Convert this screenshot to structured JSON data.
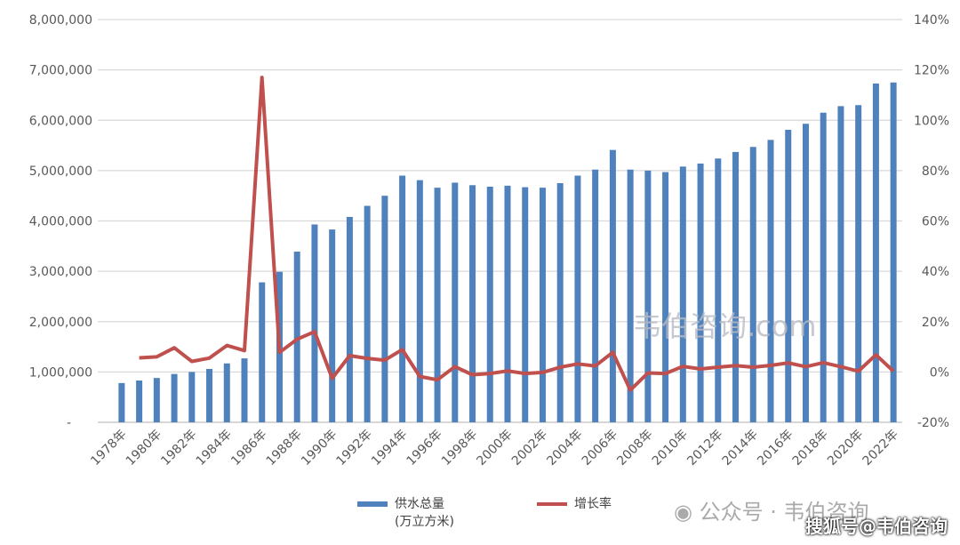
{
  "chart_data": {
    "type": "bar+line",
    "categories": [
      "1978年",
      "1979年",
      "1980年",
      "1981年",
      "1982年",
      "1983年",
      "1984年",
      "1985年",
      "1986年",
      "1987年",
      "1988年",
      "1989年",
      "1990年",
      "1991年",
      "1992年",
      "1993年",
      "1994年",
      "1995年",
      "1996年",
      "1997年",
      "1998年",
      "1999年",
      "2000年",
      "2001年",
      "2002年",
      "2003年",
      "2004年",
      "2005年",
      "2006年",
      "2007年",
      "2008年",
      "2009年",
      "2010年",
      "2011年",
      "2012年",
      "2013年",
      "2014年",
      "2015年",
      "2016年",
      "2017年",
      "2018年",
      "2019年",
      "2020年",
      "2021年",
      "2022年"
    ],
    "series": [
      {
        "name": "供水总量",
        "name_line2": "(万立方米)",
        "type": "bar",
        "axis": "left",
        "color": "#4f81bd",
        "values": [
          780000,
          830000,
          880000,
          960000,
          1000000,
          1060000,
          1170000,
          1270000,
          2780000,
          2990000,
          3390000,
          3930000,
          3830000,
          4080000,
          4300000,
          4500000,
          4900000,
          4810000,
          4660000,
          4760000,
          4710000,
          4680000,
          4700000,
          4670000,
          4660000,
          4750000,
          4900000,
          5020000,
          5410000,
          5020000,
          5000000,
          4970000,
          5080000,
          5140000,
          5240000,
          5370000,
          5470000,
          5610000,
          5810000,
          5930000,
          6150000,
          6280000,
          6300000,
          6730000,
          6750000
        ]
      },
      {
        "name": "增长率",
        "type": "line",
        "axis": "right",
        "color": "#c0504d",
        "values": [
          null,
          5.6,
          6.0,
          9.6,
          4.2,
          5.5,
          10.5,
          8.5,
          117,
          7.8,
          13,
          16,
          -2.5,
          6.5,
          5.4,
          4.7,
          8.9,
          -1.8,
          -3.1,
          2.1,
          -1.1,
          -0.6,
          0.4,
          -0.6,
          -0.2,
          1.9,
          3.2,
          2.4,
          7.8,
          -7.2,
          -0.4,
          -0.6,
          2.2,
          1.2,
          1.9,
          2.5,
          1.9,
          2.6,
          3.6,
          2.1,
          3.7,
          2.1,
          0.3,
          6.8,
          0.3
        ]
      }
    ],
    "y_left": {
      "ylim": [
        0,
        8000000
      ],
      "ticks": [
        "-",
        "1,000,000",
        "2,000,000",
        "3,000,000",
        "4,000,000",
        "5,000,000",
        "6,000,000",
        "7,000,000",
        "8,000,000"
      ]
    },
    "y_right": {
      "ylim": [
        -20,
        140
      ],
      "ticks": [
        "-20%",
        "0%",
        "20%",
        "40%",
        "60%",
        "80%",
        "100%",
        "120%",
        "140%"
      ]
    },
    "grid": true,
    "legend_placement": "bottom"
  },
  "watermarks": {
    "plot": "韦伯咨询.com",
    "wechat": "公众号 · 韦伯咨询",
    "sohu": "搜狐号@韦伯咨询"
  }
}
